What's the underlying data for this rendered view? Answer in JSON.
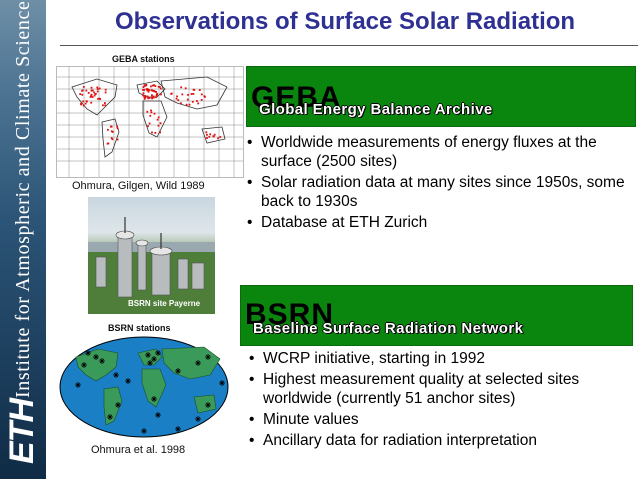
{
  "sidebar": {
    "institute": "Institute for Atmospheric and Climate Science",
    "logo": "ETH"
  },
  "title": "Observations of Surface Solar Radiation",
  "geba_map": {
    "caption": "GEBA stations",
    "credit": "Ohmura, Gilgen, Wild  1989"
  },
  "photo": {
    "label": "BSRN site Payerne"
  },
  "bsrn_map": {
    "caption": "BSRN stations",
    "credit": "Ohmura et al. 1998"
  },
  "geba": {
    "acronym": "GEBA",
    "full_name": "Global Energy Balance Archive",
    "bullets": [
      "Worldwide measurements of energy fluxes at the surface (2500 sites)",
      "Solar  radiation data at many sites since 1950s, some back to 1930s",
      "Database at ETH Zurich"
    ]
  },
  "bsrn": {
    "acronym": "BSRN",
    "full_name": "Baseline Surface Radiation Network",
    "bullets": [
      "WCRP initiative, starting in 1992",
      "Highest measurement quality at selected sites worldwide (currently 51 anchor sites)",
      "Minute values",
      "Ancillary data for radiation interpretation"
    ]
  },
  "colors": {
    "title": "#2e3192",
    "box_green": "#0a860f",
    "ocean_blue": "#1a7fc4",
    "land_green": "#3a9a5a",
    "station_red": "#e01010"
  }
}
